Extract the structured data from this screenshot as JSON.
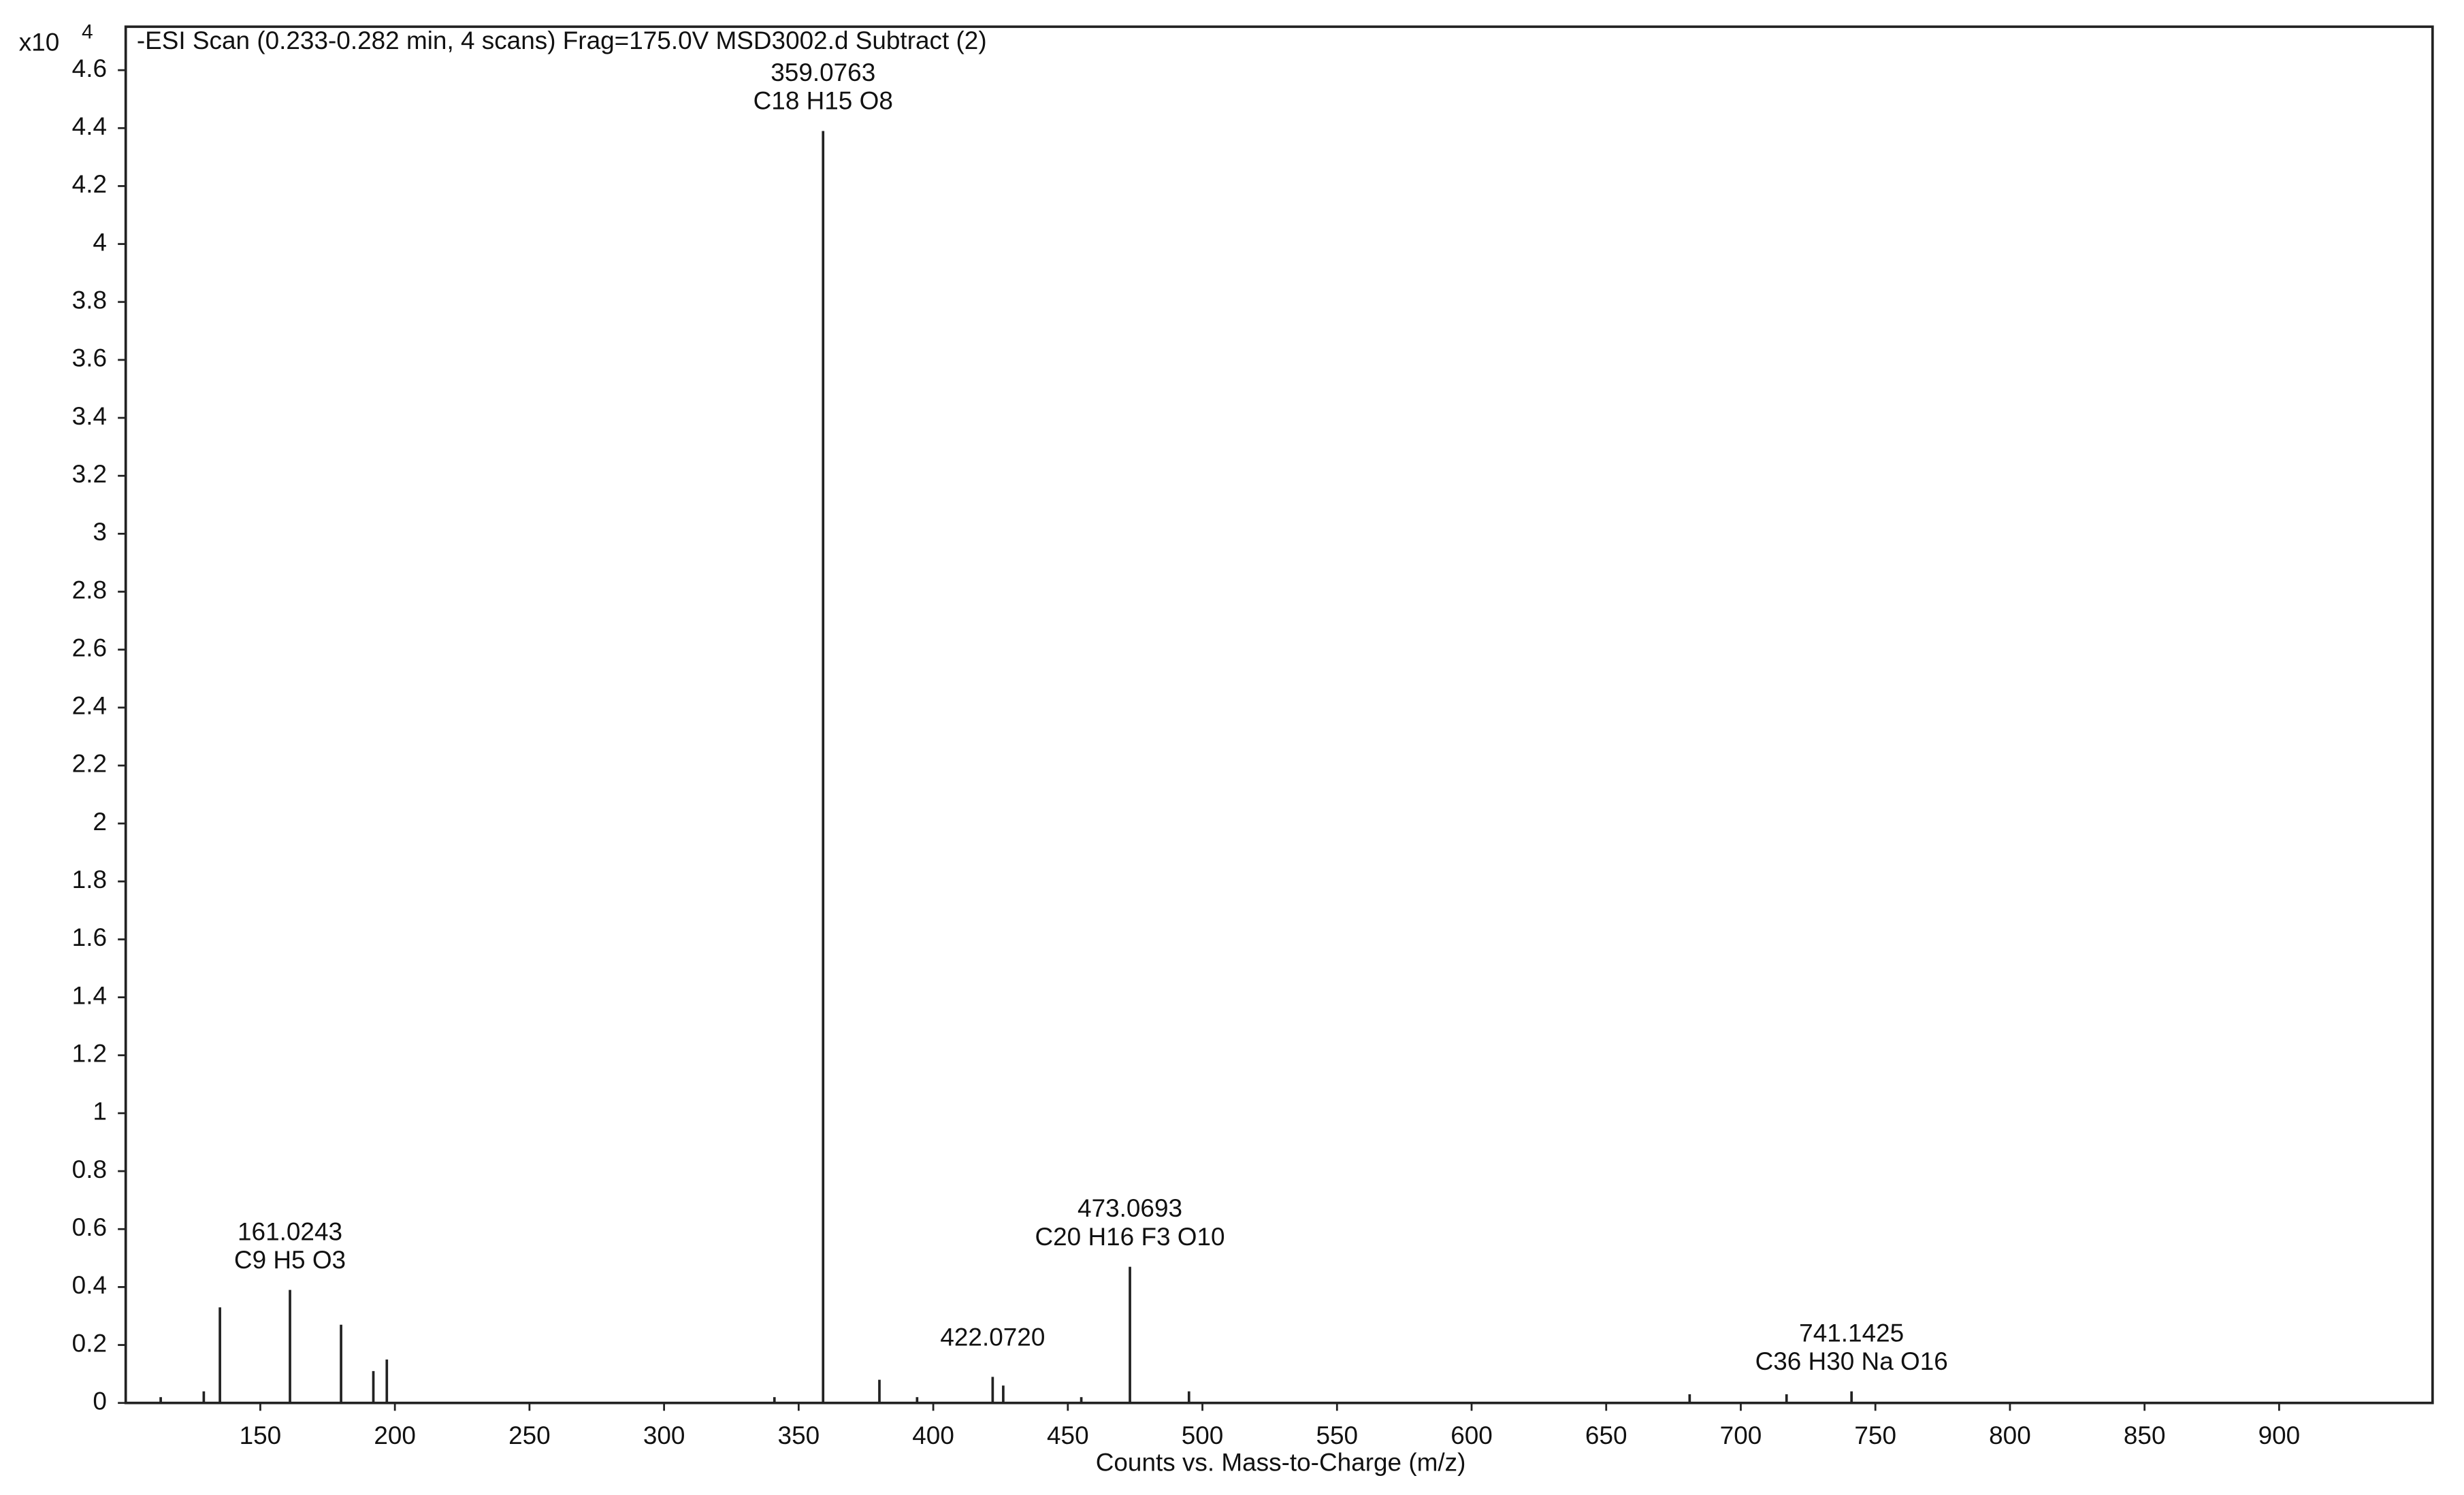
{
  "chart_data": {
    "type": "stem",
    "title": "-ESI Scan (0.233-0.282 min, 4 scans) Frag=175.0V MSD3002.d  Subtract (2)",
    "x_label": "Counts vs. Mass-to-Charge (m/z)",
    "y_multiplier": "x10",
    "y_multiplier_exponent": "4",
    "x": [
      113,
      129,
      135,
      161.0243,
      180,
      192,
      197,
      341,
      359.0763,
      380,
      394,
      422.072,
      426,
      455,
      473.0693,
      495,
      681,
      717,
      741.1425
    ],
    "values": [
      0.02,
      0.04,
      0.33,
      0.39,
      0.27,
      0.11,
      0.15,
      0.02,
      4.39,
      0.08,
      0.02,
      0.09,
      0.06,
      0.02,
      0.47,
      0.04,
      0.03,
      0.03,
      0.04
    ],
    "peak_labels": [
      null,
      null,
      null,
      "161.0243",
      null,
      null,
      null,
      null,
      "359.0763",
      null,
      null,
      "422.0720",
      null,
      null,
      "473.0693",
      null,
      null,
      null,
      "741.1425"
    ],
    "peak_formulas": [
      null,
      null,
      null,
      "C9 H5 O3",
      null,
      null,
      null,
      null,
      "C18 H15 O8",
      null,
      null,
      null,
      null,
      null,
      "C20 H16 F3 O10",
      null,
      null,
      null,
      "C36 H30 Na O16"
    ],
    "color": "#222222",
    "xlim": [
      100,
      957
    ],
    "ylim": [
      0,
      4.75
    ],
    "xticks": [
      150,
      200,
      250,
      300,
      350,
      400,
      450,
      500,
      550,
      600,
      650,
      700,
      750,
      800,
      850,
      900
    ],
    "yticks": [
      0,
      0.2,
      0.4,
      0.6,
      0.8,
      1,
      1.2,
      1.4,
      1.6,
      1.8,
      2,
      2.2,
      2.4,
      2.6,
      2.8,
      3,
      3.2,
      3.4,
      3.6,
      3.8,
      4,
      4.2,
      4.4,
      4.6
    ]
  }
}
